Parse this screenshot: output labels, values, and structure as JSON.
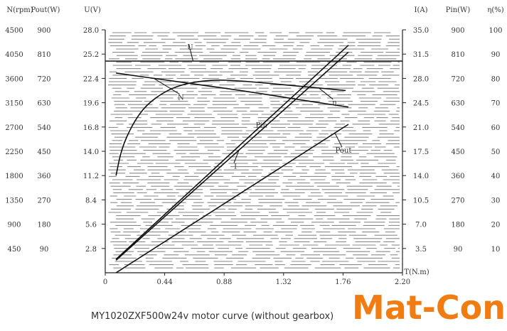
{
  "caption": "MY1020ZXF500w24v motor curve (without gearbox)",
  "brand": {
    "text": "Mat-Con",
    "color": "#f07c12"
  },
  "chart_data": {
    "type": "line",
    "xlabel": "T(N.m)",
    "xlim": [
      0,
      2.2
    ],
    "x_ticks": [
      "0",
      "0.44",
      "0.88",
      "1.32",
      "1.76",
      "2.20"
    ],
    "left_axes": [
      {
        "header": "N(rpm)",
        "ticks": [
          "4500",
          "4050",
          "3600",
          "3150",
          "2700",
          "2250",
          "1800",
          "1350",
          "900",
          "450"
        ]
      },
      {
        "header": "Pout(W)",
        "ticks": [
          "900",
          "810",
          "720",
          "630",
          "540",
          "450",
          "360",
          "270",
          "180",
          "90"
        ]
      },
      {
        "header": "U(V)",
        "ticks": [
          "28.0",
          "25.2",
          "22.4",
          "19.6",
          "16.8",
          "14.0",
          "11.2",
          "8.4",
          "5.6",
          "2.8"
        ]
      }
    ],
    "right_axes": [
      {
        "header": "I(A)",
        "ticks": [
          "35.0",
          "31.5",
          "28.0",
          "24.5",
          "21.0",
          "17.5",
          "14.0",
          "10.5",
          "7.0",
          "3.5"
        ]
      },
      {
        "header": "Pin(W)",
        "ticks": [
          "900",
          "810",
          "720",
          "630",
          "540",
          "450",
          "360",
          "270",
          "180",
          "90"
        ]
      },
      {
        "header": "η(%)",
        "ticks": [
          "100",
          "90",
          "80",
          "70",
          "60",
          "50",
          "40",
          "30",
          "20",
          "10"
        ]
      }
    ],
    "series": [
      {
        "name": "U",
        "axis": "U(V)",
        "x": [
          0,
          2.2
        ],
        "y": [
          24.4,
          24.4
        ]
      },
      {
        "name": "N",
        "axis": "N(rpm)",
        "x": [
          0.08,
          0.5,
          1.0,
          1.5,
          1.8
        ],
        "y": [
          3700,
          3550,
          3380,
          3180,
          3070
        ]
      },
      {
        "name": "η",
        "axis": "η(%)",
        "x": [
          0.08,
          0.12,
          0.2,
          0.3,
          0.45,
          0.6,
          0.8,
          1.0,
          1.2,
          1.4,
          1.6,
          1.78
        ],
        "y": [
          40,
          51,
          61,
          69,
          75,
          78,
          79.5,
          79,
          78,
          77,
          76,
          75
        ]
      },
      {
        "name": "Pin",
        "axis": "Pin(W)",
        "x": [
          0.08,
          1.8
        ],
        "y": [
          50,
          843
        ]
      },
      {
        "name": "I",
        "axis": "I(A)",
        "x": [
          0.08,
          1.8
        ],
        "y": [
          1.8,
          31.8
        ]
      },
      {
        "name": "Pout",
        "axis": "Pout(W)",
        "x": [
          0.08,
          1.8
        ],
        "y": [
          0,
          550
        ]
      }
    ],
    "annotations": [
      "U",
      "N",
      "η",
      "Pin",
      "I",
      "Pout"
    ]
  }
}
